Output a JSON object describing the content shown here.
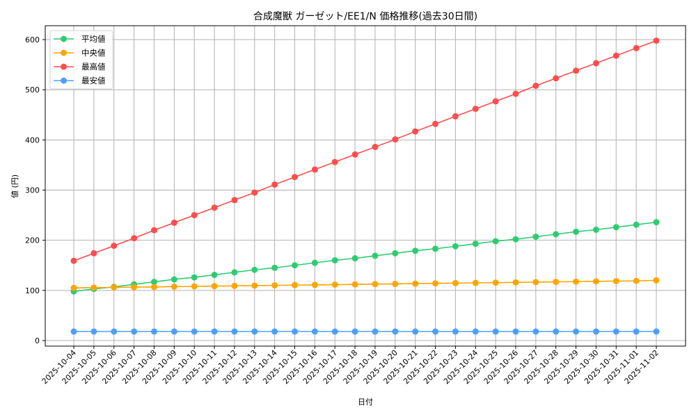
{
  "chart_data": {
    "type": "line",
    "title": "合成魔獣 ガーゼット/EE1/N 価格推移(過去30日間)",
    "xlabel": "日付",
    "ylabel": "値 (円)",
    "ylim": [
      -10,
      626
    ],
    "yticks": [
      0,
      100,
      200,
      300,
      400,
      500,
      600
    ],
    "grid": true,
    "legend_position": "upper left",
    "categories": [
      "2025-10-04",
      "2025-10-05",
      "2025-10-06",
      "2025-10-07",
      "2025-10-08",
      "2025-10-09",
      "2025-10-10",
      "2025-10-11",
      "2025-10-12",
      "2025-10-13",
      "2025-10-14",
      "2025-10-15",
      "2025-10-16",
      "2025-10-17",
      "2025-10-18",
      "2025-10-19",
      "2025-10-20",
      "2025-10-21",
      "2025-10-22",
      "2025-10-23",
      "2025-10-24",
      "2025-10-25",
      "2025-10-26",
      "2025-10-27",
      "2025-10-28",
      "2025-10-29",
      "2025-10-30",
      "2025-10-31",
      "2025-11-01",
      "2025-11-02"
    ],
    "series": [
      {
        "name": "平均値",
        "color": "#2ecc71",
        "values": [
          98,
          103,
          107,
          112,
          117,
          122,
          126,
          131,
          136,
          141,
          145,
          150,
          155,
          160,
          164,
          169,
          174,
          179,
          183,
          188,
          193,
          198,
          202,
          207,
          212,
          217,
          221,
          226,
          231,
          236
        ]
      },
      {
        "name": "中央値",
        "color": "#ffa500",
        "values": [
          105,
          105.5,
          106,
          106.5,
          107,
          107.5,
          108,
          108.5,
          109,
          109.5,
          110,
          110.5,
          111,
          111.5,
          112,
          112.5,
          113,
          113.5,
          114,
          114.5,
          115,
          115.5,
          116,
          116.5,
          117,
          117.5,
          118,
          118.5,
          119,
          120
        ]
      },
      {
        "name": "最高値",
        "color": "#ff4d4d",
        "values": [
          159,
          174,
          189,
          204,
          220,
          235,
          250,
          265,
          280,
          295,
          311,
          326,
          341,
          356,
          371,
          386,
          401,
          417,
          432,
          447,
          462,
          477,
          492,
          508,
          523,
          538,
          553,
          568,
          583,
          598
        ]
      },
      {
        "name": "最安値",
        "color": "#4d9fff",
        "values": [
          18,
          18,
          18,
          18,
          18,
          18,
          18,
          18,
          18,
          18,
          18,
          18,
          18,
          18,
          18,
          18,
          18,
          18,
          18,
          18,
          18,
          18,
          18,
          18,
          18,
          18,
          18,
          18,
          18,
          18
        ]
      }
    ]
  }
}
